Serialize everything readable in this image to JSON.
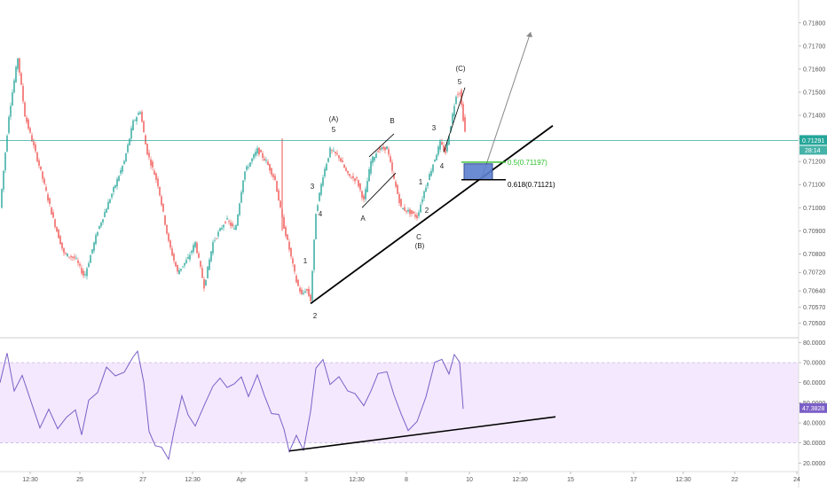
{
  "chart_data": [
    {
      "type": "candlestick",
      "title": "",
      "y_ticks": [
        "0.71800",
        "0.71700",
        "0.71600",
        "0.71500",
        "0.71400",
        "0.71300",
        "0.71200",
        "0.71100",
        "0.71000",
        "0.70900",
        "0.70800",
        "0.70720",
        "0.70640",
        "0.70570",
        "0.70500"
      ],
      "last_price": "0.71291",
      "countdown": "28:14",
      "x_ticks": [
        "12:30",
        "25",
        "27",
        "12:30",
        "Apr",
        "3",
        "12:30",
        "8",
        "10",
        "12:30",
        "15",
        "17",
        "12:30",
        "22",
        "24"
      ],
      "fib_levels": [
        {
          "label": "0.5(0.71197)",
          "value": 0.71197,
          "color": "#2bbf2b"
        },
        {
          "label": "0.618(0.71121)",
          "value": 0.71121,
          "color": "#000000"
        }
      ],
      "wave_labels": [
        "(A)",
        "5",
        "3",
        "4",
        "1",
        "2",
        "A",
        "B",
        "C",
        "(B)",
        "1",
        "2",
        "3",
        "4",
        "5",
        "(C)"
      ],
      "annotations": [
        "black trendline from wave 2 low",
        "projection arrow",
        "blue target box"
      ]
    },
    {
      "type": "line",
      "title": "",
      "y_ticks": [
        "80.0000",
        "70.0000",
        "60.0000",
        "50.0000",
        "40.0000",
        "30.0000",
        "20.0000"
      ],
      "last_value": "47.3828",
      "overbought": 70,
      "oversold": 30,
      "series_color": "#7b5fc7"
    }
  ],
  "colors": {
    "up_candle": "#26a69a",
    "down_candle": "#ef5350",
    "price_line": "#26a69a",
    "rsi_band": "#f3e8fd",
    "rsi_line": "#7b5fc7",
    "target_box": "#5b7fcf"
  }
}
